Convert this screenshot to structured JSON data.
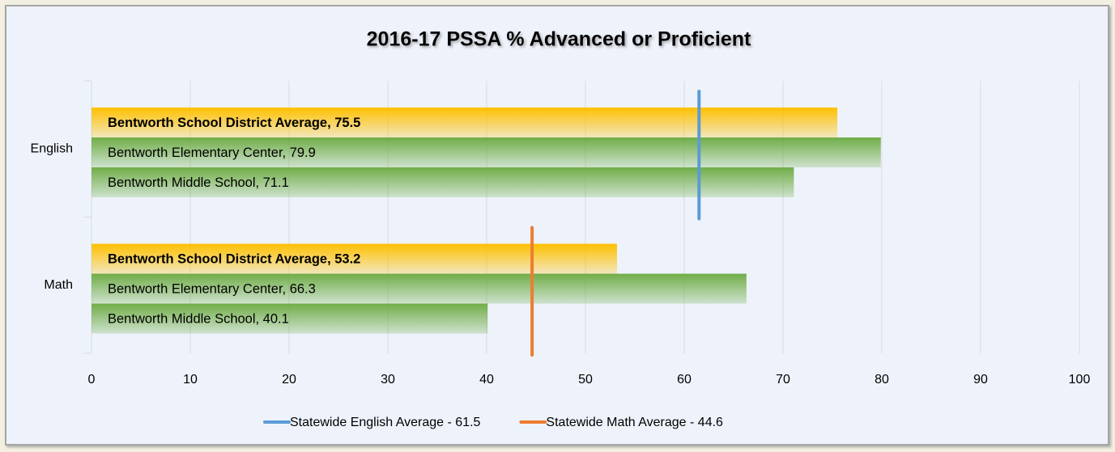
{
  "chart_data": {
    "type": "bar",
    "orientation": "horizontal",
    "title": "2016-17 PSSA % Advanced or Proficient",
    "categories": [
      "English",
      "Math"
    ],
    "series": [
      {
        "color": "#ffc000",
        "bold": true,
        "values": [
          75.5,
          53.2
        ],
        "value_labels": [
          "Bentworth School District Average, 75.5",
          "Bentworth School District Average, 53.2"
        ]
      },
      {
        "color": "#70ad47",
        "values": [
          79.9,
          66.3
        ],
        "value_labels": [
          "Bentworth Elementary Center, 79.9",
          "Bentworth Elementary Center, 66.3"
        ]
      },
      {
        "color": "#70ad47",
        "values": [
          71.1,
          40.1
        ],
        "value_labels": [
          "Bentworth Middle School, 71.1",
          "Bentworth Middle School, 40.1"
        ]
      }
    ],
    "reference_lines": [
      {
        "name": "Statewide English Average - 61.5",
        "value": 61.5,
        "category": 0,
        "color": "#5b9bd5"
      },
      {
        "name": "Statewide Math Average - 44.6",
        "value": 44.6,
        "category": 1,
        "color": "#ed7d31"
      }
    ],
    "xlim": [
      0,
      100
    ],
    "xticks": [
      0,
      10,
      20,
      30,
      40,
      50,
      60,
      70,
      80,
      90,
      100
    ],
    "grid": true,
    "legend": "bottom"
  }
}
